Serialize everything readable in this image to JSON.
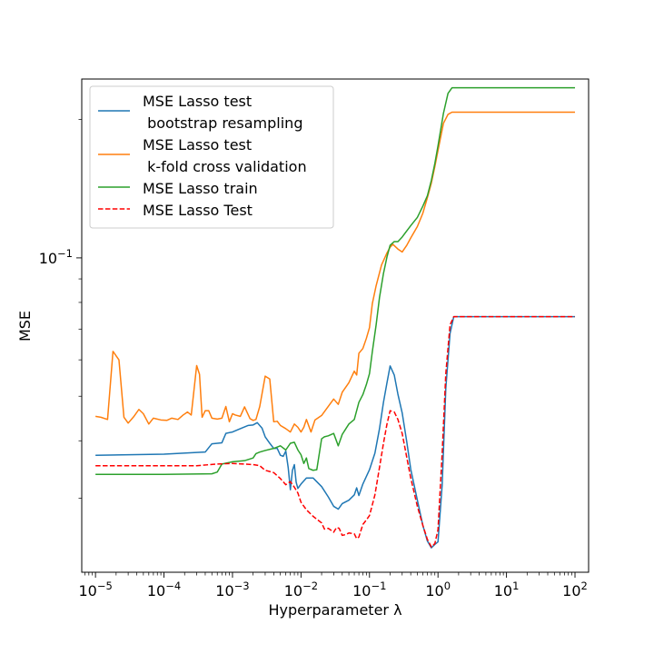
{
  "chart_data": {
    "type": "line",
    "xlabel": "Hyperparameter λ",
    "ylabel": "MSE",
    "x_scale": "log",
    "y_scale": "log",
    "xlim": [
      6.3e-06,
      158
    ],
    "ylim": [
      0.0207,
      0.245
    ],
    "grid": false,
    "legend_position": "top-left",
    "x_ticks": [
      {
        "value": 1e-05,
        "base": "10",
        "exp": "−5"
      },
      {
        "value": 0.0001,
        "base": "10",
        "exp": "−4"
      },
      {
        "value": 0.001,
        "base": "10",
        "exp": "−3"
      },
      {
        "value": 0.01,
        "base": "10",
        "exp": "−2"
      },
      {
        "value": 0.1,
        "base": "10",
        "exp": "−1"
      },
      {
        "value": 1,
        "base": "10",
        "exp": "0"
      },
      {
        "value": 10,
        "base": "10",
        "exp": "1"
      },
      {
        "value": 100,
        "base": "10",
        "exp": "2"
      }
    ],
    "y_ticks": [
      {
        "value": 0.1,
        "base": "10",
        "exp": "−1"
      }
    ],
    "series": [
      {
        "name": "MSE Lasso test\n bootstrap resampling",
        "color": "#1f77b4",
        "dash": "solid",
        "points": [
          [
            1e-05,
            0.0372
          ],
          [
            0.0001,
            0.0374
          ],
          [
            0.0004,
            0.0378
          ],
          [
            0.0005,
            0.0394
          ],
          [
            0.0007,
            0.0396
          ],
          [
            0.0008,
            0.0415
          ],
          [
            0.001,
            0.0418
          ],
          [
            0.0013,
            0.0425
          ],
          [
            0.0017,
            0.0432
          ],
          [
            0.002,
            0.0433
          ],
          [
            0.0023,
            0.0438
          ],
          [
            0.0027,
            0.0426
          ],
          [
            0.003,
            0.0408
          ],
          [
            0.0035,
            0.0395
          ],
          [
            0.004,
            0.0385
          ],
          [
            0.0045,
            0.0385
          ],
          [
            0.005,
            0.0372
          ],
          [
            0.0055,
            0.037
          ],
          [
            0.006,
            0.038
          ],
          [
            0.0065,
            0.035
          ],
          [
            0.007,
            0.0313
          ],
          [
            0.0075,
            0.0345
          ],
          [
            0.008,
            0.0355
          ],
          [
            0.0085,
            0.0325
          ],
          [
            0.009,
            0.0315
          ],
          [
            0.01,
            0.0322
          ],
          [
            0.012,
            0.0332
          ],
          [
            0.015,
            0.0332
          ],
          [
            0.02,
            0.0318
          ],
          [
            0.025,
            0.0302
          ],
          [
            0.03,
            0.0288
          ],
          [
            0.035,
            0.0284
          ],
          [
            0.04,
            0.0292
          ],
          [
            0.05,
            0.0297
          ],
          [
            0.06,
            0.0305
          ],
          [
            0.065,
            0.0316
          ],
          [
            0.07,
            0.0304
          ],
          [
            0.08,
            0.0322
          ],
          [
            0.1,
            0.0346
          ],
          [
            0.12,
            0.0376
          ],
          [
            0.14,
            0.0425
          ],
          [
            0.16,
            0.0485
          ],
          [
            0.18,
            0.0535
          ],
          [
            0.2,
            0.0582
          ],
          [
            0.23,
            0.0556
          ],
          [
            0.26,
            0.0505
          ],
          [
            0.3,
            0.046
          ],
          [
            0.35,
            0.0398
          ],
          [
            0.4,
            0.0347
          ],
          [
            0.5,
            0.0297
          ],
          [
            0.6,
            0.0262
          ],
          [
            0.7,
            0.0242
          ],
          [
            0.8,
            0.0234
          ],
          [
            0.9,
            0.0238
          ],
          [
            1.0,
            0.0241
          ],
          [
            1.15,
            0.032
          ],
          [
            1.3,
            0.052
          ],
          [
            1.5,
            0.0685
          ],
          [
            1.7,
            0.0745
          ],
          [
            2,
            0.0745
          ],
          [
            5,
            0.0745
          ],
          [
            20,
            0.0745
          ],
          [
            100,
            0.0745
          ]
        ]
      },
      {
        "name": "MSE Lasso test\n k-fold cross validation",
        "color": "#ff7f0e",
        "dash": "solid",
        "points": [
          [
            1e-05,
            0.0452
          ],
          [
            1.2e-05,
            0.045
          ],
          [
            1.5e-05,
            0.0445
          ],
          [
            1.8e-05,
            0.0626
          ],
          [
            2.2e-05,
            0.06
          ],
          [
            2.6e-05,
            0.045
          ],
          [
            3e-05,
            0.0437
          ],
          [
            3.6e-05,
            0.0451
          ],
          [
            4.3e-05,
            0.0468
          ],
          [
            5e-05,
            0.0458
          ],
          [
            6e-05,
            0.0435
          ],
          [
            7e-05,
            0.0448
          ],
          [
            9e-05,
            0.0444
          ],
          [
            0.00011,
            0.0443
          ],
          [
            0.00013,
            0.0448
          ],
          [
            0.00016,
            0.0445
          ],
          [
            0.00019,
            0.0455
          ],
          [
            0.00022,
            0.0462
          ],
          [
            0.00025,
            0.0455
          ],
          [
            0.0003,
            0.0583
          ],
          [
            0.00033,
            0.0558
          ],
          [
            0.00036,
            0.045
          ],
          [
            0.0004,
            0.0465
          ],
          [
            0.00045,
            0.0465
          ],
          [
            0.0005,
            0.0448
          ],
          [
            0.0006,
            0.0446
          ],
          [
            0.0007,
            0.0448
          ],
          [
            0.0008,
            0.0475
          ],
          [
            0.0009,
            0.044
          ],
          [
            0.001,
            0.0458
          ],
          [
            0.0011,
            0.0455
          ],
          [
            0.0013,
            0.0452
          ],
          [
            0.0015,
            0.0474
          ],
          [
            0.0018,
            0.0447
          ],
          [
            0.002,
            0.0443
          ],
          [
            0.0022,
            0.0445
          ],
          [
            0.0025,
            0.0475
          ],
          [
            0.003,
            0.0553
          ],
          [
            0.0035,
            0.0545
          ],
          [
            0.004,
            0.044
          ],
          [
            0.0045,
            0.0441
          ],
          [
            0.005,
            0.0432
          ],
          [
            0.006,
            0.0425
          ],
          [
            0.007,
            0.0418
          ],
          [
            0.008,
            0.0435
          ],
          [
            0.009,
            0.0428
          ],
          [
            0.01,
            0.0418
          ],
          [
            0.011,
            0.0428
          ],
          [
            0.012,
            0.0445
          ],
          [
            0.014,
            0.0418
          ],
          [
            0.016,
            0.0444
          ],
          [
            0.02,
            0.0454
          ],
          [
            0.025,
            0.0475
          ],
          [
            0.03,
            0.0493
          ],
          [
            0.035,
            0.048
          ],
          [
            0.04,
            0.051
          ],
          [
            0.05,
            0.0535
          ],
          [
            0.06,
            0.0567
          ],
          [
            0.065,
            0.0556
          ],
          [
            0.07,
            0.062
          ],
          [
            0.08,
            0.0635
          ],
          [
            0.09,
            0.0668
          ],
          [
            0.1,
            0.0705
          ],
          [
            0.11,
            0.0795
          ],
          [
            0.125,
            0.087
          ],
          [
            0.15,
            0.0965
          ],
          [
            0.18,
            0.1025
          ],
          [
            0.2,
            0.1055
          ],
          [
            0.22,
            0.107
          ],
          [
            0.26,
            0.1045
          ],
          [
            0.3,
            0.103
          ],
          [
            0.35,
            0.1065
          ],
          [
            0.4,
            0.1105
          ],
          [
            0.5,
            0.117
          ],
          [
            0.6,
            0.125
          ],
          [
            0.7,
            0.1352
          ],
          [
            0.8,
            0.1455
          ],
          [
            0.9,
            0.158
          ],
          [
            1.0,
            0.1712
          ],
          [
            1.2,
            0.1962
          ],
          [
            1.4,
            0.2052
          ],
          [
            1.6,
            0.2075
          ],
          [
            2,
            0.2075
          ],
          [
            5,
            0.2075
          ],
          [
            20,
            0.2075
          ],
          [
            100,
            0.2075
          ]
        ]
      },
      {
        "name": "MSE Lasso train",
        "color": "#2ca02c",
        "dash": "solid",
        "points": [
          [
            1e-05,
            0.0338
          ],
          [
            0.0001,
            0.0338
          ],
          [
            0.0005,
            0.0339
          ],
          [
            0.0006,
            0.0342
          ],
          [
            0.0007,
            0.0356
          ],
          [
            0.001,
            0.036
          ],
          [
            0.0015,
            0.0362
          ],
          [
            0.002,
            0.0367
          ],
          [
            0.0022,
            0.0375
          ],
          [
            0.0025,
            0.0378
          ],
          [
            0.003,
            0.0381
          ],
          [
            0.004,
            0.0385
          ],
          [
            0.005,
            0.039
          ],
          [
            0.006,
            0.0382
          ],
          [
            0.007,
            0.0395
          ],
          [
            0.008,
            0.0397
          ],
          [
            0.009,
            0.0382
          ],
          [
            0.01,
            0.0373
          ],
          [
            0.011,
            0.0357
          ],
          [
            0.012,
            0.0367
          ],
          [
            0.013,
            0.0348
          ],
          [
            0.015,
            0.0345
          ],
          [
            0.017,
            0.0346
          ],
          [
            0.02,
            0.0404
          ],
          [
            0.022,
            0.0408
          ],
          [
            0.025,
            0.041
          ],
          [
            0.03,
            0.0415
          ],
          [
            0.035,
            0.039
          ],
          [
            0.04,
            0.0413
          ],
          [
            0.05,
            0.0435
          ],
          [
            0.06,
            0.0445
          ],
          [
            0.07,
            0.0485
          ],
          [
            0.08,
            0.0504
          ],
          [
            0.09,
            0.053
          ],
          [
            0.1,
            0.056
          ],
          [
            0.11,
            0.0625
          ],
          [
            0.125,
            0.0715
          ],
          [
            0.14,
            0.082
          ],
          [
            0.16,
            0.0925
          ],
          [
            0.18,
            0.1005
          ],
          [
            0.2,
            0.1065
          ],
          [
            0.23,
            0.1085
          ],
          [
            0.26,
            0.1085
          ],
          [
            0.3,
            0.111
          ],
          [
            0.35,
            0.1145
          ],
          [
            0.4,
            0.1175
          ],
          [
            0.5,
            0.1225
          ],
          [
            0.6,
            0.1295
          ],
          [
            0.7,
            0.1365
          ],
          [
            0.8,
            0.1475
          ],
          [
            0.9,
            0.1605
          ],
          [
            1.0,
            0.1752
          ],
          [
            1.2,
            0.2062
          ],
          [
            1.4,
            0.228
          ],
          [
            1.6,
            0.2345
          ],
          [
            2,
            0.2345
          ],
          [
            5,
            0.2345
          ],
          [
            20,
            0.2345
          ],
          [
            100,
            0.2345
          ]
        ]
      },
      {
        "name": "MSE Lasso Test",
        "color": "#ff0000",
        "dash": "dashed",
        "points": [
          [
            1e-05,
            0.0353
          ],
          [
            0.0001,
            0.0353
          ],
          [
            0.0003,
            0.0353
          ],
          [
            0.0006,
            0.0356
          ],
          [
            0.001,
            0.0357
          ],
          [
            0.0015,
            0.0356
          ],
          [
            0.002,
            0.0355
          ],
          [
            0.0025,
            0.0353
          ],
          [
            0.003,
            0.0345
          ],
          [
            0.004,
            0.0341
          ],
          [
            0.005,
            0.0331
          ],
          [
            0.006,
            0.0321
          ],
          [
            0.007,
            0.0326
          ],
          [
            0.008,
            0.0317
          ],
          [
            0.009,
            0.0308
          ],
          [
            0.01,
            0.0294
          ],
          [
            0.012,
            0.0283
          ],
          [
            0.015,
            0.0274
          ],
          [
            0.02,
            0.0265
          ],
          [
            0.022,
            0.0257
          ],
          [
            0.025,
            0.0258
          ],
          [
            0.03,
            0.0253
          ],
          [
            0.033,
            0.0259
          ],
          [
            0.036,
            0.0258
          ],
          [
            0.04,
            0.0249
          ],
          [
            0.045,
            0.025
          ],
          [
            0.05,
            0.0252
          ],
          [
            0.06,
            0.0251
          ],
          [
            0.065,
            0.0245
          ],
          [
            0.07,
            0.0247
          ],
          [
            0.08,
            0.0263
          ],
          [
            0.09,
            0.0269
          ],
          [
            0.1,
            0.0275
          ],
          [
            0.12,
            0.0305
          ],
          [
            0.14,
            0.035
          ],
          [
            0.16,
            0.0395
          ],
          [
            0.18,
            0.0435
          ],
          [
            0.2,
            0.0465
          ],
          [
            0.23,
            0.0462
          ],
          [
            0.26,
            0.0445
          ],
          [
            0.3,
            0.0415
          ],
          [
            0.35,
            0.0368
          ],
          [
            0.4,
            0.0332
          ],
          [
            0.5,
            0.0288
          ],
          [
            0.6,
            0.0262
          ],
          [
            0.7,
            0.0244
          ],
          [
            0.8,
            0.0235
          ],
          [
            0.9,
            0.0239
          ],
          [
            1.0,
            0.0256
          ],
          [
            1.15,
            0.0375
          ],
          [
            1.3,
            0.056
          ],
          [
            1.5,
            0.0715
          ],
          [
            1.7,
            0.0745
          ],
          [
            2,
            0.0745
          ],
          [
            5,
            0.0745
          ],
          [
            20,
            0.0745
          ],
          [
            100,
            0.0745
          ]
        ]
      }
    ]
  }
}
